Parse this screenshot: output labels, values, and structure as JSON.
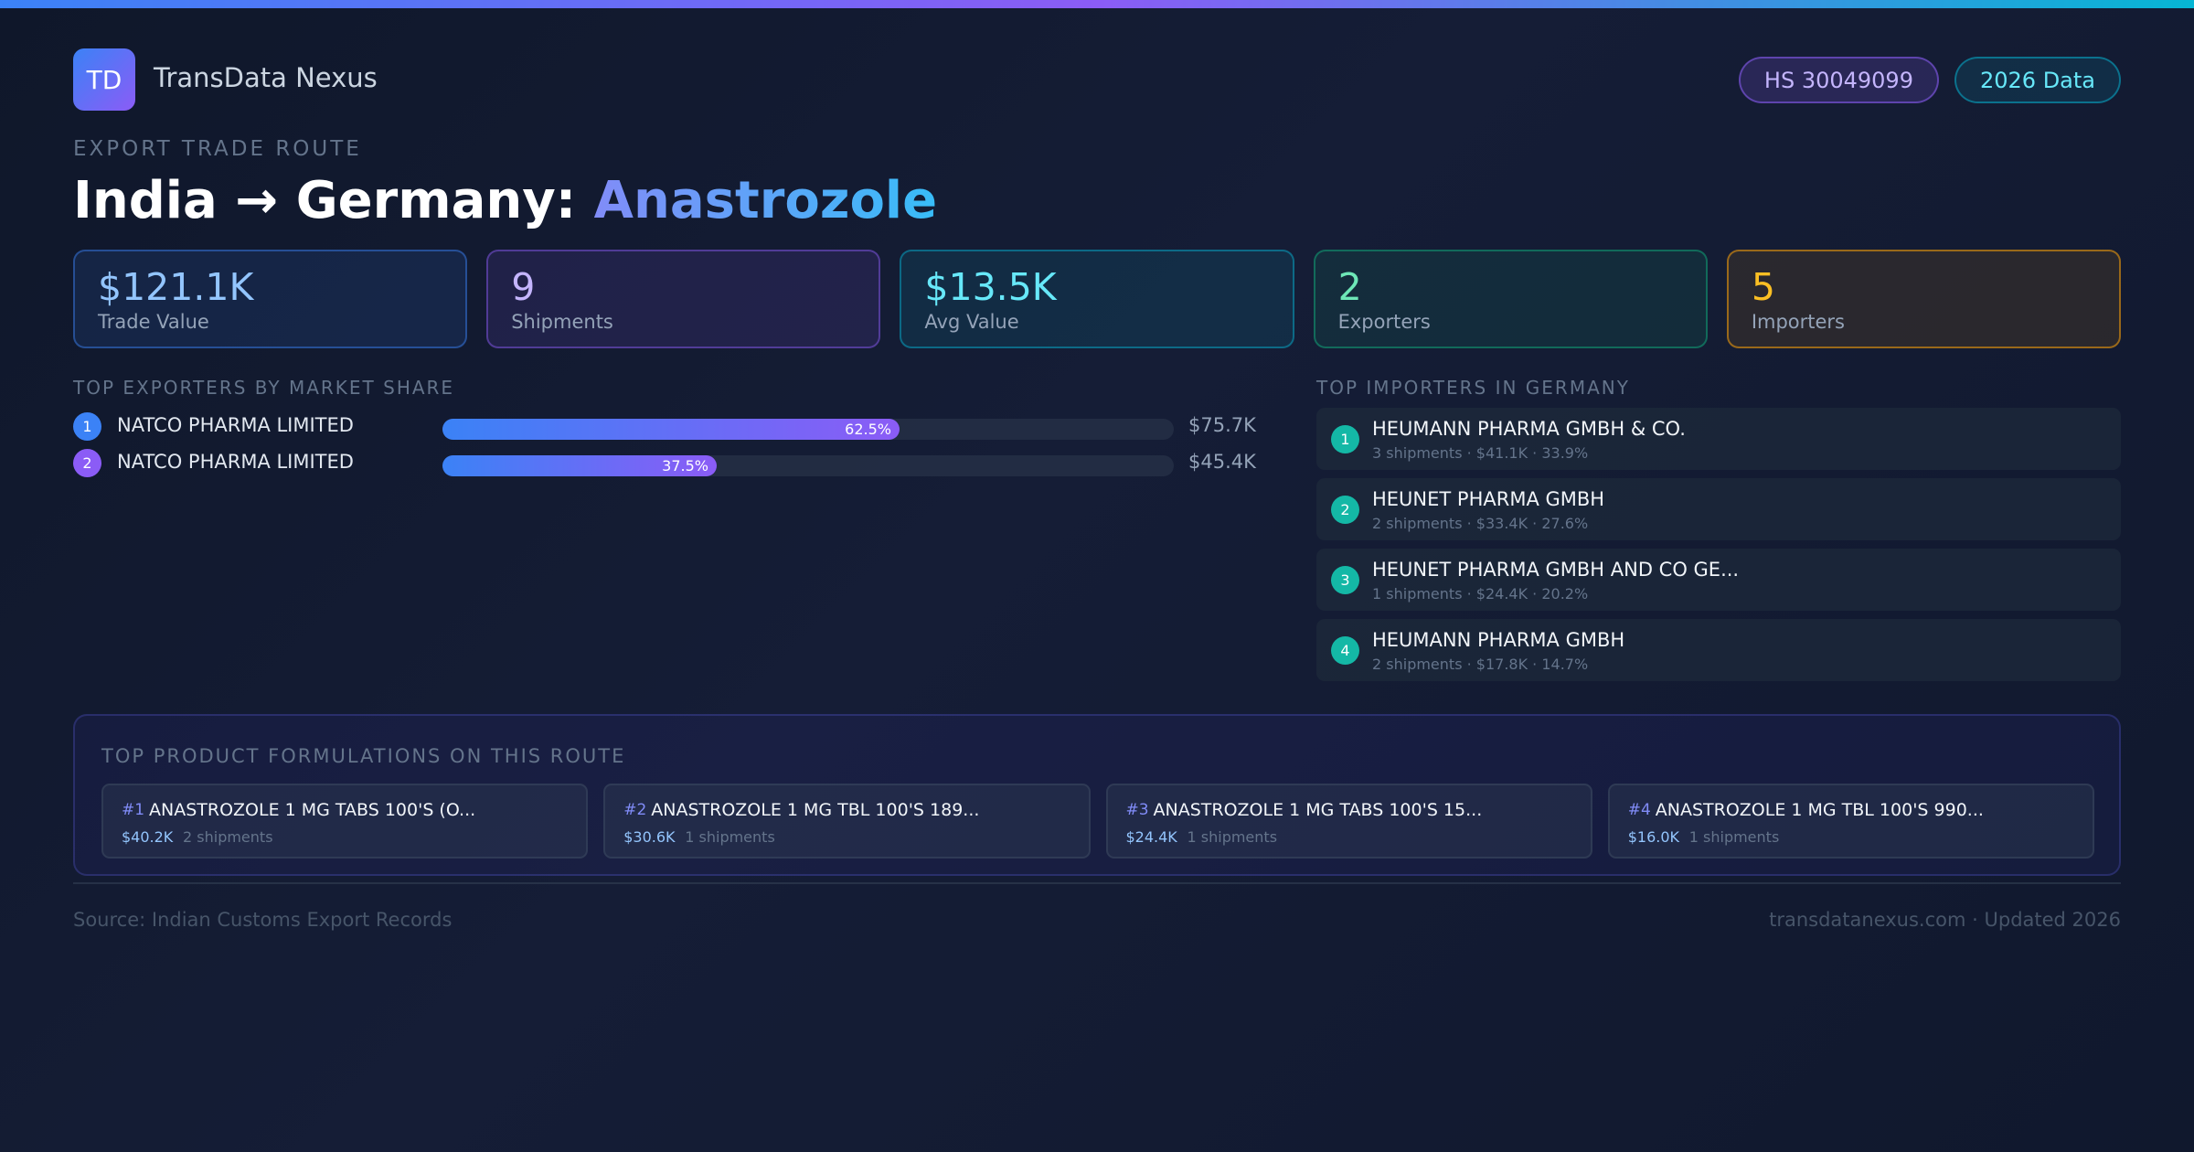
{
  "brand": {
    "logo_text": "TD",
    "name": "TransData Nexus"
  },
  "badges": {
    "hs_code": "HS 30049099",
    "year": "2026 Data"
  },
  "route": {
    "eyebrow": "EXPORT TRADE ROUTE",
    "title_prefix": "India → Germany: ",
    "product": "Anastrozole"
  },
  "stats": [
    {
      "value": "$121.1K",
      "label": "Trade Value"
    },
    {
      "value": "9",
      "label": "Shipments"
    },
    {
      "value": "$13.5K",
      "label": "Avg Value"
    },
    {
      "value": "2",
      "label": "Exporters"
    },
    {
      "value": "5",
      "label": "Importers"
    }
  ],
  "exporters": {
    "heading": "TOP EXPORTERS BY MARKET SHARE",
    "items": [
      {
        "rank": "1",
        "name": "NATCO PHARMA LIMITED",
        "share": 62.5,
        "share_label": "62.5%",
        "value": "$75.7K",
        "badge_color": "#3b82f6"
      },
      {
        "rank": "2",
        "name": "NATCO PHARMA LIMITED",
        "share": 37.5,
        "share_label": "37.5%",
        "value": "$45.4K",
        "badge_color": "#8b5cf6"
      }
    ]
  },
  "importers": {
    "heading": "TOP IMPORTERS IN GERMANY",
    "items": [
      {
        "rank": "1",
        "name": "HEUMANN PHARMA GMBH & CO.",
        "detail": "3 shipments · $41.1K · 33.9%"
      },
      {
        "rank": "2",
        "name": "HEUNET PHARMA GMBH",
        "detail": "2 shipments · $33.4K · 27.6%"
      },
      {
        "rank": "3",
        "name": "HEUNET PHARMA GMBH AND CO GE...",
        "detail": "1 shipments · $24.4K · 20.2%"
      },
      {
        "rank": "4",
        "name": "HEUMANN PHARMA GMBH",
        "detail": "2 shipments · $17.8K · 14.7%"
      }
    ]
  },
  "formulations": {
    "heading": "TOP PRODUCT FORMULATIONS ON THIS ROUTE",
    "items": [
      {
        "rank": "#1",
        "name": "ANASTROZOLE 1 MG TABS 100'S (O...",
        "value": "$40.2K",
        "shipments": "2 shipments"
      },
      {
        "rank": "#2",
        "name": "ANASTROZOLE 1 MG TBL 100'S 189...",
        "value": "$30.6K",
        "shipments": "1 shipments"
      },
      {
        "rank": "#3",
        "name": "ANASTROZOLE 1 MG TABS 100'S 15...",
        "value": "$24.4K",
        "shipments": "1 shipments"
      },
      {
        "rank": "#4",
        "name": "ANASTROZOLE 1 MG TBL 100'S 990...",
        "value": "$16.0K",
        "shipments": "1 shipments"
      }
    ]
  },
  "footer": {
    "source": "Source: Indian Customs Export Records",
    "site": "transdatanexus.com · Updated 2026"
  }
}
